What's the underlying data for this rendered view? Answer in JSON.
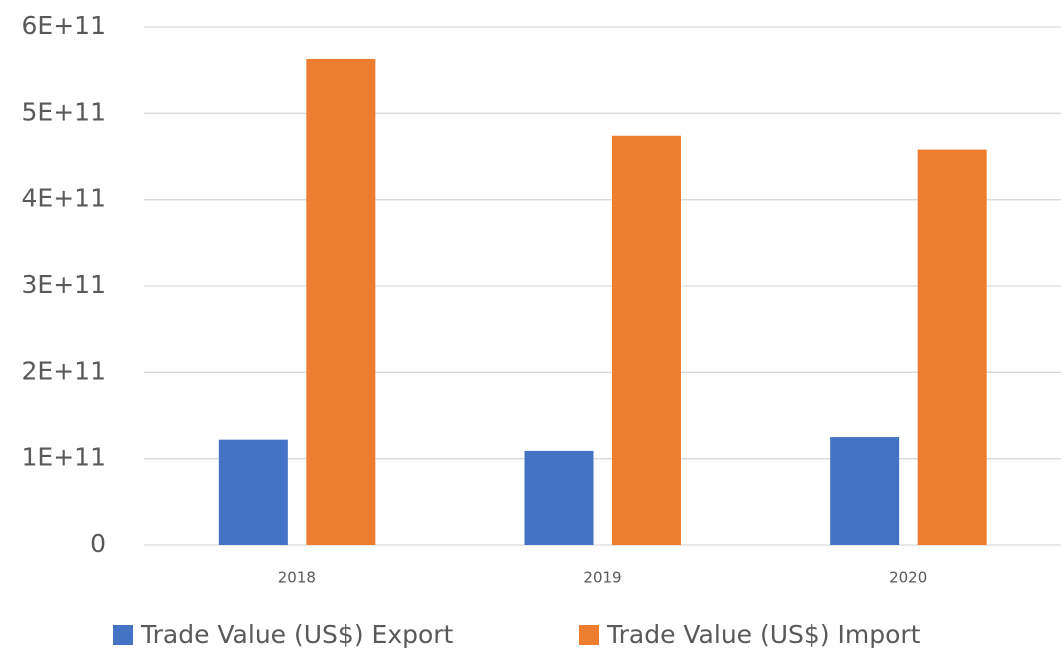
{
  "chart_data": {
    "type": "bar",
    "categories": [
      "2018",
      "2019",
      "2020"
    ],
    "series": [
      {
        "name": "Trade Value (US$) Export",
        "color": "#4472c4",
        "values": [
          122000000000,
          109000000000,
          125000000000
        ]
      },
      {
        "name": "Trade Value (US$) Import",
        "color": "#ed7d31",
        "values": [
          563000000000,
          474000000000,
          458000000000
        ]
      }
    ],
    "ylim": [
      0,
      600000000000
    ],
    "yticks": [
      0,
      {
        "value": 100000000000,
        "label": "1E+11"
      },
      {
        "value": 200000000000,
        "label": "2E+11"
      },
      {
        "value": 300000000000,
        "label": "3E+11"
      },
      {
        "value": 400000000000,
        "label": "4E+11"
      },
      {
        "value": 500000000000,
        "label": "5E+11"
      },
      {
        "value": 600000000000,
        "label": "6E+11"
      }
    ],
    "grid": true,
    "legend": "bottom"
  }
}
